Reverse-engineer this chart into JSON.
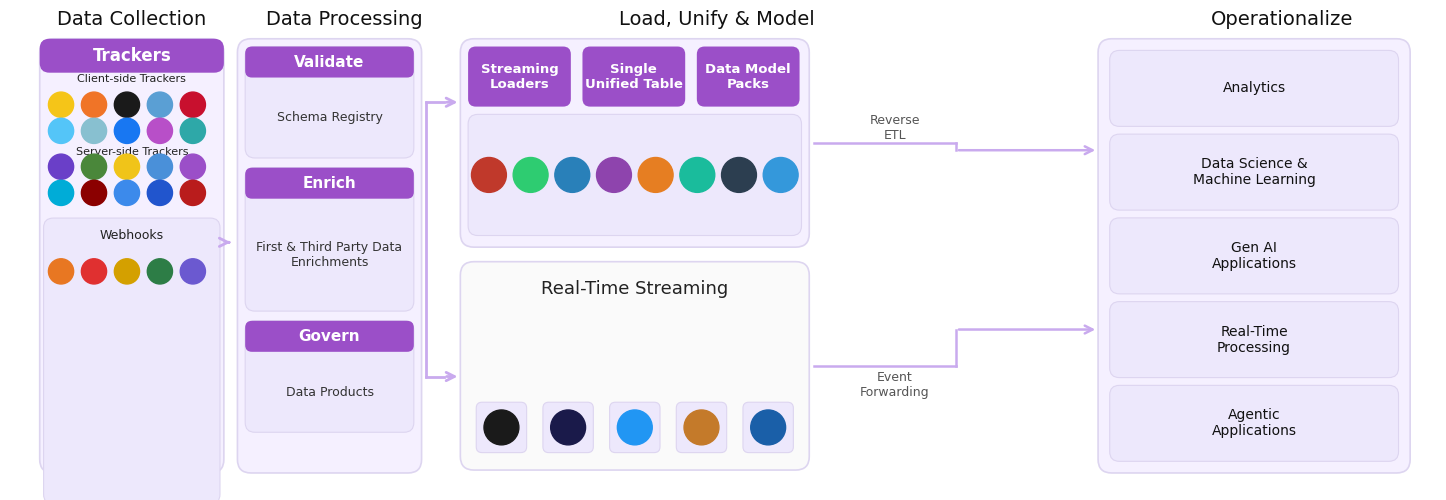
{
  "bg_color": "#ffffff",
  "section_titles": [
    "Data Collection",
    "Data Processing",
    "Load, Unify & Model",
    "Operationalize"
  ],
  "purple_header_color": "#9b4fc8",
  "light_purple_bg": "#f5f0ff",
  "lighter_purple_bg": "#ede8fc",
  "panel_bg": "#f8f5ff",
  "box_border_color": "#ddd5f0",
  "arrow_color": "#c9aaee",
  "dc_header": "Trackers",
  "dc_client_label": "Client-side Trackers",
  "dc_server_label": "Server-side Trackers",
  "dc_webhook_label": "Webhooks",
  "dp_headers": [
    "Validate",
    "Enrich",
    "Govern"
  ],
  "dp_sublabels": [
    "Schema Registry",
    "First & Third Party Data\nEnrichments",
    "Data Products"
  ],
  "lum_top_headers": [
    "Streaming\nLoaders",
    "Single\nUnified Table",
    "Data Model\nPacks"
  ],
  "lum_bottom_title": "Real-Time Streaming",
  "op_items": [
    "Analytics",
    "Data Science &\nMachine Learning",
    "Gen AI\nApplications",
    "Real-Time\nProcessing",
    "Agentic\nApplications"
  ],
  "reverse_etl_label": "Reverse\nETL",
  "event_forwarding_label": "Event\nForwarding"
}
